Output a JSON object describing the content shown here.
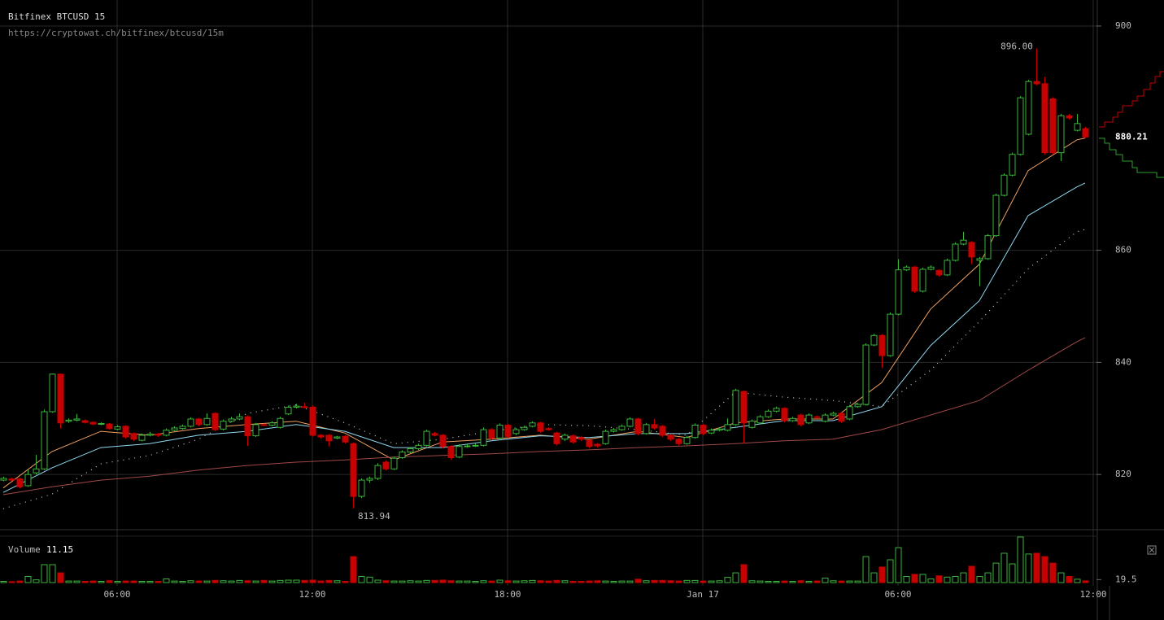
{
  "chart_data": {
    "type": "candlestick",
    "title": "Bitfinex BTCUSD 15",
    "subtitle": "https://cryptowat.ch/bitfinex/btcusd/15m",
    "up_color": "#3cb43c",
    "down_color": "#c80000",
    "grid": true,
    "xlim": [
      2.4,
      36.1
    ],
    "xticks": [
      {
        "value": 6,
        "label": "06:00"
      },
      {
        "value": 12,
        "label": "12:00"
      },
      {
        "value": 18,
        "label": "18:00"
      },
      {
        "value": 24,
        "label": "Jan 17"
      },
      {
        "value": 30,
        "label": "06:00"
      },
      {
        "value": 36,
        "label": "12:00"
      }
    ],
    "ylim": [
      810.3,
      904.64
    ],
    "yticks": [
      820,
      840,
      860,
      900
    ],
    "annotations": [
      {
        "value": 896,
        "label": "896.00"
      }
    ],
    "x": [
      2.5,
      2.75,
      3,
      3.25,
      3.5,
      3.75,
      4,
      4.25,
      4.5,
      4.75,
      5,
      5.25,
      5.5,
      5.75,
      6,
      6.25,
      6.5,
      6.75,
      7,
      7.25,
      7.5,
      7.75,
      8,
      8.25,
      8.5,
      8.75,
      9,
      9.25,
      9.5,
      9.75,
      10,
      10.25,
      10.5,
      10.75,
      11,
      11.25,
      11.5,
      11.75,
      12,
      12.25,
      12.5,
      12.75,
      13,
      13.25,
      13.5,
      13.75,
      14,
      14.25,
      14.5,
      14.75,
      15,
      15.25,
      15.5,
      15.75,
      16,
      16.25,
      16.5,
      16.75,
      17,
      17.25,
      17.5,
      17.75,
      18,
      18.25,
      18.5,
      18.75,
      19,
      19.25,
      19.5,
      19.75,
      20,
      20.25,
      20.5,
      20.75,
      21,
      21.25,
      21.5,
      21.75,
      22,
      22.25,
      22.5,
      22.75,
      23,
      23.25,
      23.5,
      23.75,
      24,
      24.25,
      24.5,
      24.75,
      25,
      25.25,
      25.5,
      25.75,
      26,
      26.25,
      26.5,
      26.75,
      27,
      27.25,
      27.5,
      27.75,
      28,
      28.25,
      28.5,
      28.75,
      29,
      29.25,
      29.5,
      29.75,
      30,
      30.25,
      30.5,
      30.75,
      31,
      31.25,
      31.5,
      31.75,
      32,
      32.25,
      32.5,
      32.75,
      33,
      33.25,
      33.5,
      33.75,
      34,
      34.25,
      34.5,
      34.75,
      35,
      35.25,
      35.5,
      35.75
    ],
    "open": [
      819.0,
      819.2,
      819.2,
      818.0,
      820.3,
      821.0,
      831.2,
      837.9,
      829.5,
      829.7,
      829.6,
      829.3,
      829.0,
      829.0,
      828.1,
      828.6,
      827.3,
      826.1,
      827.0,
      827.2,
      827.0,
      827.9,
      828.2,
      828.6,
      829.9,
      828.9,
      830.9,
      828.1,
      829.5,
      829.9,
      830.3,
      826.9,
      828.9,
      828.8,
      828.4,
      830.8,
      832.0,
      832.1,
      832.0,
      827.0,
      827.0,
      826.5,
      826.8,
      825.5,
      816.1,
      819.0,
      819.3,
      822.2,
      821.0,
      823.0,
      824.0,
      824.6,
      825.2,
      827.3,
      827.0,
      825.0,
      823.1,
      825.0,
      825.1,
      825.2,
      828.0,
      826.5,
      828.8,
      827.3,
      828.0,
      828.6,
      829.2,
      828.2,
      827.4,
      826.3,
      826.9,
      826.6,
      826.1,
      825.4,
      825.5,
      827.7,
      828.0,
      828.6,
      829.9,
      827.3,
      828.9,
      828.6,
      827.0,
      826.3,
      825.5,
      826.6,
      828.8,
      827.4,
      827.9,
      827.9,
      828.9,
      834.8,
      828.4,
      829.2,
      830.3,
      831.3,
      831.8,
      829.6,
      830.6,
      829.2,
      830.3,
      829.5,
      830.6,
      830.9,
      829.9,
      832.1,
      832.5,
      843.1,
      844.8,
      841.2,
      848.6,
      856.5,
      857.0,
      852.7,
      856.6,
      856.4,
      855.6,
      858.2,
      861.1,
      861.4,
      858.2,
      858.5,
      862.6,
      869.8,
      873.4,
      877.1,
      880.7,
      890.1,
      889.7,
      887.0,
      877.4,
      884.0,
      881.4,
      881.7
    ],
    "high": [
      819.6,
      819.4,
      819.4,
      820.8,
      823.5,
      831.6,
      838.0,
      838.0,
      830.0,
      830.8,
      829.8,
      829.5,
      829.3,
      829.2,
      828.8,
      828.8,
      827.5,
      827.3,
      827.6,
      827.4,
      828.2,
      828.6,
      828.9,
      830.2,
      830.1,
      830.9,
      831.1,
      829.8,
      830.3,
      830.9,
      830.5,
      829.2,
      829.1,
      829.5,
      830.3,
      832.3,
      832.6,
      832.8,
      832.3,
      827.2,
      827.2,
      826.9,
      827.0,
      825.7,
      819.3,
      819.6,
      822.0,
      822.5,
      823.2,
      824.3,
      824.9,
      825.5,
      828.0,
      827.6,
      827.2,
      825.2,
      825.4,
      825.4,
      825.5,
      828.4,
      828.2,
      829.1,
      829.0,
      828.3,
      828.7,
      829.5,
      829.4,
      828.4,
      827.6,
      827.3,
      827.1,
      826.8,
      826.3,
      825.6,
      828.0,
      828.3,
      828.9,
      830.2,
      830.1,
      829.2,
      829.9,
      828.8,
      827.2,
      826.5,
      826.9,
      829.1,
      829.0,
      828.2,
      828.4,
      830.0,
      835.3,
      835.0,
      829.8,
      830.6,
      831.6,
      832.1,
      832.0,
      830.3,
      830.8,
      830.9,
      830.5,
      830.9,
      831.2,
      831.1,
      832.4,
      832.8,
      843.4,
      845.1,
      845.0,
      848.9,
      858.4,
      857.3,
      857.2,
      856.9,
      857.3,
      856.6,
      858.5,
      861.4,
      863.3,
      861.6,
      858.8,
      862.9,
      870.1,
      873.7,
      877.4,
      887.5,
      890.4,
      896.0,
      890.9,
      887.3,
      884.3,
      884.3,
      884.3,
      882.0
    ],
    "low": [
      818.8,
      818.8,
      817.5,
      817.8,
      820.0,
      820.8,
      831.0,
      828.2,
      829.2,
      829.5,
      829.1,
      828.8,
      828.8,
      828.0,
      827.9,
      826.4,
      826.0,
      825.9,
      826.8,
      826.7,
      826.8,
      827.7,
      828.0,
      828.4,
      828.6,
      828.7,
      827.8,
      827.9,
      829.3,
      829.7,
      825.1,
      826.7,
      828.6,
      828.6,
      828.2,
      830.6,
      831.8,
      831.8,
      826.8,
      826.4,
      825.0,
      826.3,
      825.5,
      813.94,
      815.8,
      818.5,
      819.0,
      820.7,
      820.8,
      822.8,
      823.8,
      824.4,
      825.0,
      826.8,
      824.7,
      822.6,
      822.9,
      824.8,
      824.9,
      825.0,
      826.2,
      826.3,
      826.5,
      827.0,
      827.8,
      828.4,
      827.4,
      827.8,
      825.2,
      826.0,
      825.5,
      826.0,
      824.7,
      824.8,
      825.3,
      827.5,
      827.8,
      828.4,
      827.0,
      827.1,
      828.0,
      826.7,
      826.0,
      825.2,
      825.3,
      826.4,
      827.0,
      827.2,
      827.7,
      827.7,
      828.7,
      825.5,
      828.2,
      829.0,
      830.1,
      831.1,
      829.3,
      829.4,
      828.6,
      829.0,
      830.0,
      829.3,
      830.4,
      829.2,
      829.7,
      831.9,
      832.3,
      842.9,
      839.0,
      841.0,
      848.4,
      856.3,
      852.4,
      852.5,
      856.4,
      855.3,
      855.4,
      858.0,
      860.9,
      857.5,
      853.6,
      858.3,
      862.4,
      869.6,
      873.2,
      876.9,
      880.5,
      889.4,
      877.1,
      877.1,
      875.9,
      883.3,
      881.2,
      880.0
    ],
    "close": [
      819.3,
      819.0,
      817.8,
      820.0,
      821.0,
      831.2,
      837.9,
      829.2,
      829.7,
      829.9,
      829.3,
      829.0,
      829.1,
      828.2,
      828.5,
      826.7,
      826.3,
      827.0,
      827.2,
      827.0,
      827.9,
      828.3,
      828.6,
      829.9,
      828.9,
      830.0,
      828.0,
      829.5,
      829.9,
      830.3,
      826.9,
      828.9,
      828.8,
      829.2,
      830.0,
      832.0,
      832.2,
      832.0,
      827.0,
      826.7,
      826.0,
      826.7,
      825.8,
      816.1,
      819.0,
      819.3,
      821.6,
      821.0,
      822.9,
      824.0,
      824.6,
      825.2,
      827.7,
      827.0,
      825.0,
      823.0,
      825.0,
      825.1,
      825.2,
      828.0,
      826.5,
      828.8,
      826.8,
      828.0,
      828.4,
      829.2,
      827.7,
      828.0,
      825.5,
      827.0,
      825.8,
      826.3,
      825.0,
      825.1,
      827.7,
      828.0,
      828.6,
      829.9,
      827.3,
      828.9,
      828.3,
      827.0,
      826.3,
      825.5,
      826.6,
      828.8,
      827.3,
      827.9,
      828.1,
      828.9,
      835.0,
      829.2,
      829.5,
      830.3,
      831.3,
      831.8,
      829.6,
      830.0,
      828.9,
      830.6,
      830.2,
      830.6,
      830.9,
      829.5,
      832.1,
      832.5,
      843.1,
      844.8,
      841.2,
      848.6,
      856.5,
      857.0,
      852.7,
      856.6,
      857.0,
      855.6,
      858.2,
      861.1,
      861.8,
      858.8,
      858.5,
      862.6,
      869.8,
      873.4,
      877.1,
      887.2,
      890.1,
      889.7,
      877.4,
      877.4,
      884.0,
      883.6,
      882.6,
      880.21
    ],
    "series": [
      {
        "color": "#f0a060",
        "style": "solid",
        "x": [
          2.5,
          4,
          5.5,
          7,
          8.5,
          10,
          11.5,
          13,
          14.5,
          16,
          17.5,
          19,
          20.5,
          22,
          23.5,
          25,
          26.5,
          28,
          29.5,
          31,
          32.5,
          34,
          35.5,
          35.75
        ],
        "values": [
          817.6,
          824.1,
          827.7,
          827,
          828.2,
          828.9,
          829.5,
          827.4,
          822.6,
          825.8,
          826.3,
          827,
          826.3,
          827.7,
          826.6,
          829.2,
          829.9,
          829.9,
          836.4,
          849.5,
          857.5,
          874.2,
          879.7,
          880
        ]
      },
      {
        "color": "#8fd8f0",
        "style": "solid",
        "x": [
          2.5,
          4,
          5.5,
          7,
          8.5,
          10,
          11.5,
          13,
          14.5,
          16,
          17.5,
          19,
          20.5,
          22,
          23.5,
          25,
          26.5,
          28,
          29.5,
          31,
          32.5,
          34,
          35.5,
          35.75
        ],
        "values": [
          816.8,
          821.2,
          824.8,
          825.5,
          827,
          827.7,
          828.9,
          827.7,
          824.8,
          824.8,
          826,
          826.9,
          826.6,
          827.3,
          827.3,
          828.4,
          829.6,
          829.6,
          832.1,
          843,
          851,
          866.2,
          871.3,
          872
        ]
      },
      {
        "color": "#cccccc",
        "style": "dotted",
        "x": [
          2.5,
          4,
          5.5,
          7,
          8.5,
          10,
          11.5,
          13,
          14.5,
          16,
          17.5,
          19,
          20.5,
          22,
          23.5,
          25,
          26.5,
          28,
          29.5,
          31,
          32.5,
          34,
          35.5,
          35.75
        ],
        "values": [
          813.9,
          816.5,
          821.9,
          823.4,
          826.3,
          830.9,
          832.4,
          829.2,
          825.5,
          826.3,
          827.7,
          828.9,
          828.7,
          828,
          827,
          834.7,
          833.8,
          833.2,
          832.1,
          838.6,
          847.3,
          856.7,
          863.3,
          863.7
        ]
      },
      {
        "color": "#a04848",
        "style": "solid",
        "x": [
          2.5,
          4,
          5.5,
          7,
          8.5,
          10,
          11.5,
          13,
          14.5,
          16,
          17.5,
          19,
          20.5,
          22,
          23.5,
          25,
          26.5,
          28,
          29.5,
          31,
          32.5,
          34,
          35.5,
          35.75
        ],
        "values": [
          816.4,
          817.8,
          819,
          819.7,
          820.8,
          821.6,
          822.2,
          822.6,
          823.1,
          823.4,
          823.7,
          824.1,
          824.4,
          824.8,
          825.1,
          825.5,
          826,
          826.3,
          828,
          830.6,
          833.2,
          838.6,
          843.7,
          844.4
        ]
      }
    ],
    "volume": {
      "label": "Volume",
      "ylim": [
        0,
        300
      ],
      "yticks": [
        19.5
      ],
      "values": [
        8,
        6,
        10,
        40,
        18,
        118,
        118,
        64,
        10,
        10,
        8,
        10,
        8,
        12,
        8,
        10,
        10,
        8,
        8,
        8,
        24,
        10,
        8,
        12,
        10,
        10,
        14,
        12,
        10,
        14,
        12,
        10,
        14,
        10,
        14,
        16,
        16,
        14,
        16,
        10,
        14,
        12,
        8,
        171,
        40,
        36,
        16,
        12,
        10,
        10,
        12,
        10,
        14,
        14,
        16,
        12,
        10,
        10,
        8,
        12,
        10,
        16,
        12,
        10,
        12,
        14,
        12,
        10,
        14,
        12,
        8,
        8,
        10,
        12,
        10,
        8,
        10,
        10,
        22,
        12,
        14,
        14,
        12,
        10,
        14,
        14,
        10,
        10,
        12,
        34,
        64,
        118,
        12,
        10,
        8,
        8,
        10,
        8,
        12,
        8,
        10,
        30,
        12,
        10,
        10,
        10,
        171,
        64,
        102,
        150,
        230,
        40,
        54,
        54,
        24,
        44,
        36,
        40,
        64,
        107,
        40,
        64,
        128,
        193,
        123,
        300,
        188,
        193,
        171,
        128,
        64,
        40,
        22,
        11.15
      ]
    }
  }
}
